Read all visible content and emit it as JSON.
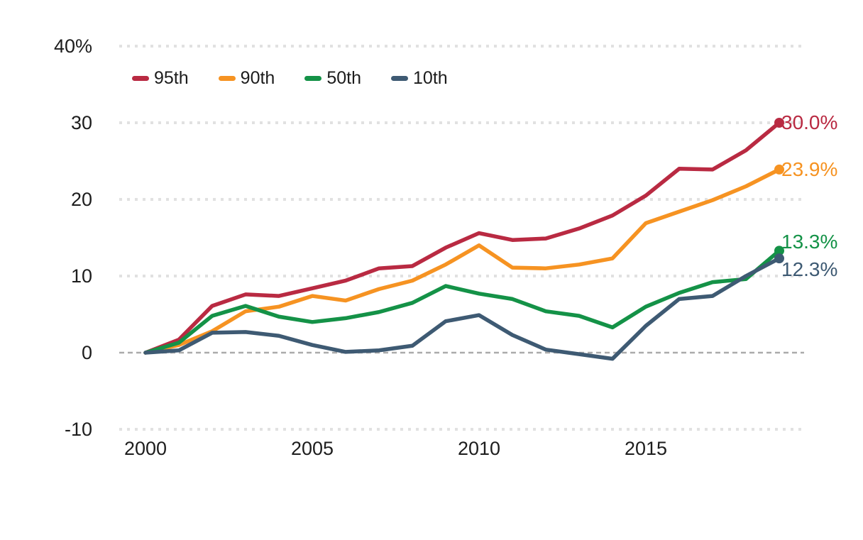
{
  "chart_data": {
    "type": "line",
    "title": "",
    "x": [
      2000,
      2001,
      2002,
      2003,
      2004,
      2005,
      2006,
      2007,
      2008,
      2009,
      2010,
      2011,
      2012,
      2013,
      2014,
      2015,
      2016,
      2017,
      2018,
      2019
    ],
    "series": [
      {
        "name": "95th",
        "color": "#b92a42",
        "end_label": "30.0%",
        "values": [
          0,
          1.7,
          6.1,
          7.6,
          7.4,
          8.4,
          9.4,
          11.0,
          11.3,
          13.7,
          15.6,
          14.7,
          14.9,
          16.2,
          17.9,
          20.5,
          24.0,
          23.9,
          26.4,
          30.0
        ]
      },
      {
        "name": "90th",
        "color": "#f69322",
        "end_label": "23.9%",
        "values": [
          0,
          1.0,
          2.8,
          5.4,
          6.0,
          7.4,
          6.8,
          8.3,
          9.4,
          11.5,
          14.0,
          11.1,
          11.0,
          11.5,
          12.3,
          16.9,
          18.4,
          19.9,
          21.7,
          23.9
        ]
      },
      {
        "name": "50th",
        "color": "#149247",
        "end_label": "13.3%",
        "values": [
          0,
          1.3,
          4.8,
          6.1,
          4.7,
          4.0,
          4.5,
          5.3,
          6.5,
          8.7,
          7.7,
          7.0,
          5.4,
          4.8,
          3.3,
          6.0,
          7.8,
          9.2,
          9.6,
          13.3
        ]
      },
      {
        "name": "10th",
        "color": "#3e5a73",
        "end_label": "12.3%",
        "values": [
          0,
          0.3,
          2.6,
          2.7,
          2.2,
          1.0,
          0.1,
          0.3,
          0.9,
          4.1,
          4.9,
          2.3,
          0.4,
          -0.2,
          -0.8,
          3.5,
          7.0,
          7.4,
          10.0,
          12.3
        ]
      }
    ],
    "y_ticks": [
      {
        "label": "40%",
        "value": 40
      },
      {
        "label": "30",
        "value": 30
      },
      {
        "label": "20",
        "value": 20
      },
      {
        "label": "10",
        "value": 10
      },
      {
        "label": "0",
        "value": 0
      },
      {
        "label": "-10",
        "value": -10
      }
    ],
    "x_ticks": [
      {
        "label": "2000",
        "year": 2000
      },
      {
        "label": "2005",
        "year": 2005
      },
      {
        "label": "2010",
        "year": 2010
      },
      {
        "label": "2015",
        "year": 2015
      }
    ],
    "ylim": [
      -10,
      40
    ],
    "xlabel": "",
    "ylabel": "",
    "legend_position": "top-left",
    "grid": "horizontal-dotted",
    "colors": {
      "grid_dotted": "#e1e1e1",
      "zero_line": "#ababab",
      "axis_text": "#1d1d1d"
    }
  }
}
